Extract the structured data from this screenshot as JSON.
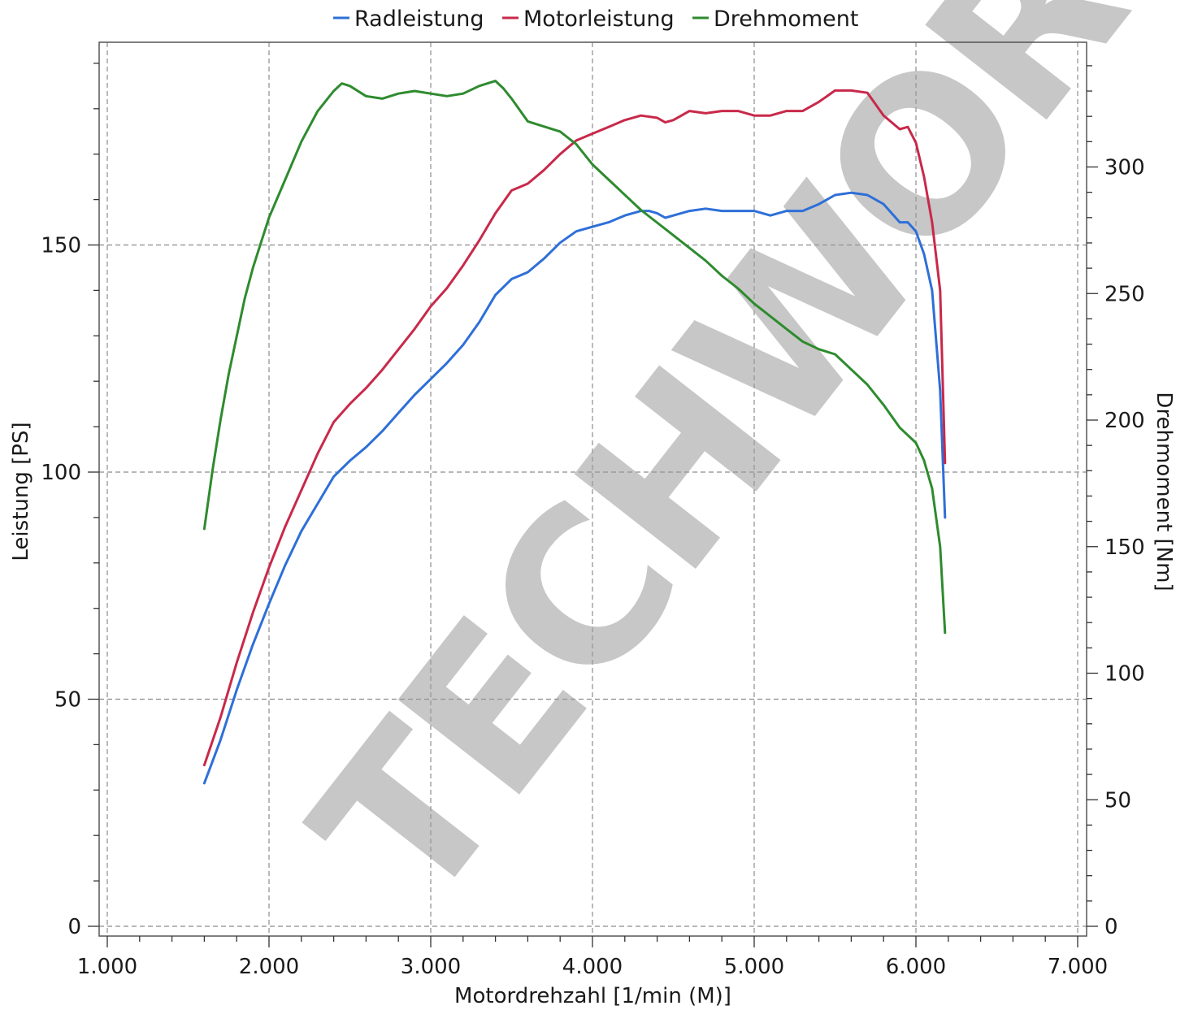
{
  "chart_data": {
    "type": "line",
    "x_axis": {
      "label": "Motordrehzahl [1/min (M)]",
      "range": [
        1000,
        7000
      ],
      "ticks": [
        1000,
        2000,
        3000,
        4000,
        5000,
        6000,
        7000
      ],
      "tick_labels": [
        "1.000",
        "2.000",
        "3.000",
        "4.000",
        "5.000",
        "6.000",
        "7.000"
      ]
    },
    "y_left": {
      "label": "Leistung [PS]",
      "range": [
        0,
        195
      ],
      "ticks": [
        0,
        50,
        100,
        150
      ],
      "tick_labels": [
        "0",
        "50",
        "100",
        "150"
      ]
    },
    "y_right": {
      "label": "Drehmoment [Nm]",
      "range": [
        0,
        350
      ],
      "ticks": [
        0,
        50,
        100,
        150,
        200,
        250,
        300
      ],
      "tick_labels": [
        "0",
        "50",
        "100",
        "150",
        "200",
        "250",
        "300"
      ]
    },
    "grid": true,
    "legend_position": "top-center",
    "watermark": "TECHWORK",
    "series": [
      {
        "name": "Radleistung",
        "axis": "left",
        "color": "#2e6fd8",
        "points": [
          [
            1600,
            31.5
          ],
          [
            1700,
            41
          ],
          [
            1800,
            52
          ],
          [
            1900,
            62
          ],
          [
            2000,
            71
          ],
          [
            2100,
            79.5
          ],
          [
            2200,
            87
          ],
          [
            2300,
            93
          ],
          [
            2400,
            99
          ],
          [
            2500,
            102.5
          ],
          [
            2600,
            105.5
          ],
          [
            2700,
            109
          ],
          [
            2800,
            113
          ],
          [
            2900,
            117
          ],
          [
            3000,
            120.5
          ],
          [
            3100,
            124
          ],
          [
            3200,
            128
          ],
          [
            3300,
            133
          ],
          [
            3400,
            139
          ],
          [
            3500,
            142.5
          ],
          [
            3600,
            144
          ],
          [
            3700,
            147
          ],
          [
            3800,
            150.5
          ],
          [
            3900,
            153
          ],
          [
            4000,
            154
          ],
          [
            4100,
            155
          ],
          [
            4200,
            156.5
          ],
          [
            4300,
            157.5
          ],
          [
            4350,
            157.5
          ],
          [
            4400,
            157
          ],
          [
            4450,
            156
          ],
          [
            4500,
            156.5
          ],
          [
            4600,
            157.5
          ],
          [
            4700,
            158
          ],
          [
            4800,
            157.5
          ],
          [
            4900,
            157.5
          ],
          [
            5000,
            157.5
          ],
          [
            5100,
            156.5
          ],
          [
            5200,
            157.5
          ],
          [
            5300,
            157.5
          ],
          [
            5400,
            159
          ],
          [
            5500,
            161
          ],
          [
            5600,
            161.5
          ],
          [
            5700,
            161
          ],
          [
            5800,
            159
          ],
          [
            5900,
            155
          ],
          [
            5950,
            155
          ],
          [
            6000,
            153
          ],
          [
            6050,
            148
          ],
          [
            6100,
            140
          ],
          [
            6150,
            118
          ],
          [
            6180,
            90
          ]
        ]
      },
      {
        "name": "Motorleistung",
        "axis": "left",
        "color": "#c8294a",
        "points": [
          [
            1600,
            35.5
          ],
          [
            1700,
            46
          ],
          [
            1800,
            58
          ],
          [
            1900,
            69
          ],
          [
            2000,
            79
          ],
          [
            2100,
            88
          ],
          [
            2200,
            96
          ],
          [
            2300,
            104
          ],
          [
            2400,
            111
          ],
          [
            2500,
            115
          ],
          [
            2600,
            118.5
          ],
          [
            2700,
            122.5
          ],
          [
            2800,
            127
          ],
          [
            2900,
            131.5
          ],
          [
            3000,
            136.5
          ],
          [
            3100,
            140.5
          ],
          [
            3200,
            145.5
          ],
          [
            3300,
            151
          ],
          [
            3400,
            157
          ],
          [
            3500,
            162
          ],
          [
            3600,
            163.5
          ],
          [
            3700,
            166.5
          ],
          [
            3800,
            170
          ],
          [
            3900,
            173
          ],
          [
            4000,
            174.5
          ],
          [
            4100,
            176
          ],
          [
            4200,
            177.5
          ],
          [
            4300,
            178.5
          ],
          [
            4400,
            178
          ],
          [
            4450,
            177
          ],
          [
            4500,
            177.5
          ],
          [
            4600,
            179.5
          ],
          [
            4700,
            179
          ],
          [
            4800,
            179.5
          ],
          [
            4900,
            179.5
          ],
          [
            5000,
            178.5
          ],
          [
            5100,
            178.5
          ],
          [
            5200,
            179.5
          ],
          [
            5300,
            179.5
          ],
          [
            5400,
            181.5
          ],
          [
            5500,
            184
          ],
          [
            5600,
            184
          ],
          [
            5700,
            183.5
          ],
          [
            5800,
            178.5
          ],
          [
            5900,
            175.5
          ],
          [
            5950,
            176
          ],
          [
            6000,
            172.5
          ],
          [
            6050,
            165
          ],
          [
            6100,
            155
          ],
          [
            6150,
            140
          ],
          [
            6180,
            102
          ]
        ]
      },
      {
        "name": "Drehmoment",
        "axis": "right",
        "color": "#2e8b2e",
        "points": [
          [
            1600,
            157
          ],
          [
            1650,
            180
          ],
          [
            1700,
            200
          ],
          [
            1750,
            218
          ],
          [
            1800,
            233
          ],
          [
            1850,
            248
          ],
          [
            1900,
            260
          ],
          [
            1950,
            270
          ],
          [
            2000,
            280
          ],
          [
            2100,
            295
          ],
          [
            2200,
            310
          ],
          [
            2300,
            322
          ],
          [
            2400,
            330
          ],
          [
            2450,
            333
          ],
          [
            2500,
            332
          ],
          [
            2600,
            328
          ],
          [
            2700,
            327
          ],
          [
            2800,
            329
          ],
          [
            2900,
            330
          ],
          [
            3000,
            329
          ],
          [
            3100,
            328
          ],
          [
            3200,
            329
          ],
          [
            3300,
            332
          ],
          [
            3400,
            334
          ],
          [
            3450,
            331
          ],
          [
            3500,
            327
          ],
          [
            3600,
            318
          ],
          [
            3700,
            316
          ],
          [
            3800,
            314
          ],
          [
            3900,
            309
          ],
          [
            4000,
            301
          ],
          [
            4100,
            295
          ],
          [
            4200,
            289
          ],
          [
            4300,
            283
          ],
          [
            4400,
            278
          ],
          [
            4500,
            273
          ],
          [
            4600,
            268
          ],
          [
            4700,
            263
          ],
          [
            4800,
            257
          ],
          [
            4900,
            252
          ],
          [
            5000,
            246
          ],
          [
            5100,
            241
          ],
          [
            5200,
            236
          ],
          [
            5300,
            231
          ],
          [
            5400,
            228
          ],
          [
            5500,
            226
          ],
          [
            5600,
            220
          ],
          [
            5700,
            214
          ],
          [
            5800,
            206
          ],
          [
            5900,
            197
          ],
          [
            6000,
            191
          ],
          [
            6050,
            184
          ],
          [
            6100,
            173
          ],
          [
            6150,
            150
          ],
          [
            6180,
            116
          ]
        ]
      }
    ]
  }
}
